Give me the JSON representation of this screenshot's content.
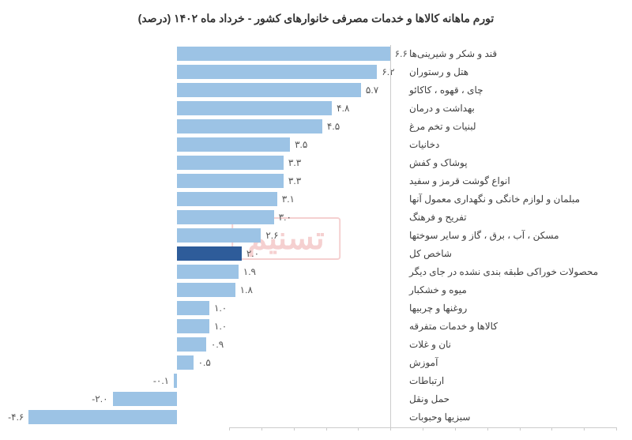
{
  "chart": {
    "type": "bar",
    "title": "تورم ماهانه کالاها و خدمات مصرفی خانوارهای کشور - خرداد ماه ۱۴۰۲ (درصد)",
    "title_fontsize": 14,
    "title_color": "#333333",
    "background_color": "#ffffff",
    "bar_default_color": "#9cc3e5",
    "bar_highlight_color": "#2e5c9a",
    "label_fontsize": 12,
    "label_color": "#404040",
    "value_fontsize": 12,
    "value_color": "#555555",
    "axis_color": "#cccccc",
    "x_min": -5,
    "x_max": 7,
    "zero_position_pct": 41.67,
    "items": [
      {
        "label": "قند و شکر و شیرینی‌ها",
        "value": 6.6,
        "display": "۶.۶",
        "highlight": false
      },
      {
        "label": "هتل و رستوران",
        "value": 6.2,
        "display": "۶.۲",
        "highlight": false
      },
      {
        "label": "چای ، قهوه ، کاکائو",
        "value": 5.7,
        "display": "۵.۷",
        "highlight": false
      },
      {
        "label": "بهداشت و درمان",
        "value": 4.8,
        "display": "۴.۸",
        "highlight": false
      },
      {
        "label": "لبنیات و تخم مرغ",
        "value": 4.5,
        "display": "۴.۵",
        "highlight": false
      },
      {
        "label": "دخانیات",
        "value": 3.5,
        "display": "۳.۵",
        "highlight": false
      },
      {
        "label": "پوشاک و کفش",
        "value": 3.3,
        "display": "۳.۳",
        "highlight": false
      },
      {
        "label": "انواع گوشت قرمز و سفید",
        "value": 3.3,
        "display": "۳.۳",
        "highlight": false
      },
      {
        "label": "مبلمان و لوازم خانگی و نگهداری معمول آنها",
        "value": 3.1,
        "display": "۳.۱",
        "highlight": false
      },
      {
        "label": "تفریح و فرهنگ",
        "value": 3.0,
        "display": "۳.۰",
        "highlight": false
      },
      {
        "label": "مسکن ، آب ، برق ، گاز و سایر سوختها",
        "value": 2.6,
        "display": "۲.۶",
        "highlight": false
      },
      {
        "label": "شاخص کل",
        "value": 2.0,
        "display": "۲.۰",
        "highlight": true
      },
      {
        "label": "محصولات خوراکی طبقه بندی نشده در جای دیگر",
        "value": 1.9,
        "display": "۱.۹",
        "highlight": false
      },
      {
        "label": "میوه و خشکبار",
        "value": 1.8,
        "display": "۱.۸",
        "highlight": false
      },
      {
        "label": "روغنها و چربیها",
        "value": 1.0,
        "display": "۱.۰",
        "highlight": false
      },
      {
        "label": "کالاها و خدمات متفرقه",
        "value": 1.0,
        "display": "۱.۰",
        "highlight": false
      },
      {
        "label": "نان و غلات",
        "value": 0.9,
        "display": "۰.۹",
        "highlight": false
      },
      {
        "label": "آموزش",
        "value": 0.5,
        "display": "۰.۵",
        "highlight": false
      },
      {
        "label": "ارتباطات",
        "value": -0.1,
        "display": "۰.۱-",
        "highlight": false
      },
      {
        "label": "حمل ونقل",
        "value": -2.0,
        "display": "۲.۰-",
        "highlight": false
      },
      {
        "label": "سبزیها وحبوبات",
        "value": -4.6,
        "display": "۴.۶-",
        "highlight": false
      }
    ],
    "watermark_text": "تسنیم"
  }
}
